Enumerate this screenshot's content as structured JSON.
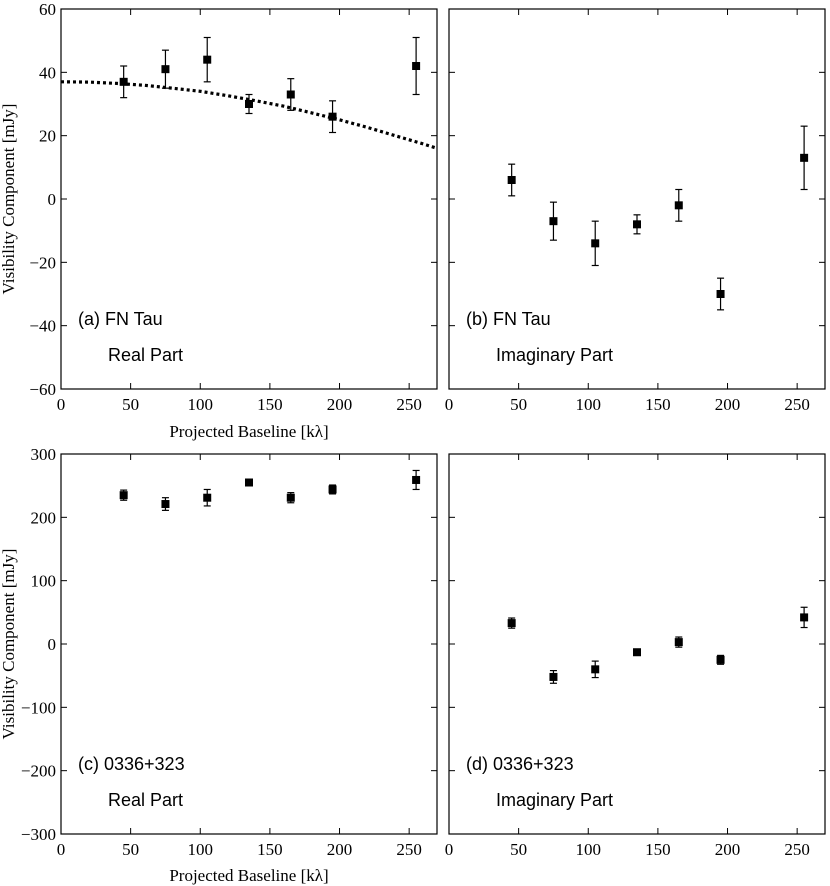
{
  "figure": {
    "x_axis_title": "Projected Baseline [kλ]",
    "y_axis_title": "Visibility Component [mJy]"
  },
  "chart_data": [
    {
      "type": "scatter",
      "panel": "a",
      "annotation": "(a) FN Tau",
      "subtitle": "Real Part",
      "xlim": [
        0,
        270
      ],
      "ylim": [
        -60,
        60
      ],
      "xticks": [
        0,
        50,
        100,
        150,
        200,
        250
      ],
      "xtick_labels": [
        "0",
        "50",
        "100",
        "150",
        "200",
        "250"
      ],
      "yticks": [
        -60,
        -40,
        -20,
        0,
        20,
        40,
        60
      ],
      "ytick_labels": [
        "−60",
        "−40",
        "−20",
        "0",
        "20",
        "40",
        "60"
      ],
      "x": [
        45,
        75,
        105,
        135,
        165,
        195,
        255
      ],
      "y": [
        37,
        41,
        44,
        30,
        33,
        26,
        42
      ],
      "yerr": [
        5,
        6,
        7,
        3,
        5,
        5,
        9
      ],
      "model_curve": {
        "style": "dotted",
        "x": [
          0,
          20,
          40,
          60,
          80,
          100,
          120,
          140,
          160,
          180,
          200,
          220,
          240,
          260,
          270
        ],
        "y": [
          37,
          36.9,
          36.5,
          35.9,
          35.0,
          34.0,
          32.6,
          31.0,
          29.3,
          27.2,
          25.0,
          22.6,
          20.0,
          17.4,
          16
        ]
      },
      "xlabel": "Projected Baseline [kλ]",
      "ylabel": "Visibility Component [mJy]"
    },
    {
      "type": "scatter",
      "panel": "b",
      "annotation": "(b) FN Tau",
      "subtitle": "Imaginary Part",
      "xlim": [
        0,
        270
      ],
      "ylim": [
        -60,
        60
      ],
      "xticks": [
        0,
        50,
        100,
        150,
        200,
        250
      ],
      "xtick_labels": [
        "0",
        "50",
        "100",
        "150",
        "200",
        "250"
      ],
      "yticks": [
        -60,
        -40,
        -20,
        0,
        20,
        40,
        60
      ],
      "ytick_labels": [],
      "x": [
        45,
        75,
        105,
        135,
        165,
        195,
        255
      ],
      "y": [
        6,
        -7,
        -14,
        -8,
        -2,
        -30,
        13
      ],
      "yerr": [
        5,
        6,
        7,
        3,
        5,
        5,
        10
      ],
      "xlabel": "",
      "ylabel": ""
    },
    {
      "type": "scatter",
      "panel": "c",
      "annotation": "(c) 0336+323",
      "subtitle": "Real Part",
      "xlim": [
        0,
        270
      ],
      "ylim": [
        -300,
        300
      ],
      "xticks": [
        0,
        50,
        100,
        150,
        200,
        250
      ],
      "xtick_labels": [
        "0",
        "50",
        "100",
        "150",
        "200",
        "250"
      ],
      "yticks": [
        -300,
        -200,
        -100,
        0,
        100,
        200,
        300
      ],
      "ytick_labels": [
        "−300",
        "−200",
        "−100",
        "0",
        "100",
        "200",
        "300"
      ],
      "x": [
        45,
        75,
        105,
        135,
        165,
        195,
        255
      ],
      "y": [
        235,
        221,
        231,
        255,
        231,
        244,
        259
      ],
      "yerr": [
        8,
        10,
        13,
        5,
        8,
        7,
        15
      ],
      "xlabel": "Projected Baseline [kλ]",
      "ylabel": "Visibility Component [mJy]"
    },
    {
      "type": "scatter",
      "panel": "d",
      "annotation": "(d) 0336+323",
      "subtitle": "Imaginary Part",
      "xlim": [
        0,
        270
      ],
      "ylim": [
        -300,
        300
      ],
      "xticks": [
        0,
        50,
        100,
        150,
        200,
        250
      ],
      "xtick_labels": [
        "0",
        "50",
        "100",
        "150",
        "200",
        "250"
      ],
      "yticks": [
        -300,
        -200,
        -100,
        0,
        100,
        200,
        300
      ],
      "ytick_labels": [],
      "x": [
        45,
        75,
        105,
        135,
        165,
        195,
        255
      ],
      "y": [
        33,
        -52,
        -40,
        -13,
        3,
        -25,
        42
      ],
      "yerr": [
        8,
        10,
        13,
        5,
        8,
        7,
        16
      ],
      "xlabel": "",
      "ylabel": ""
    }
  ]
}
